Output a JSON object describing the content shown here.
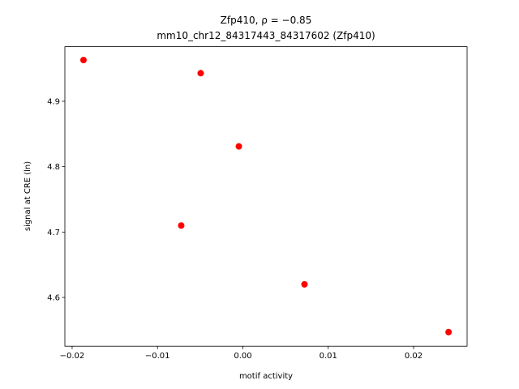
{
  "chart_data": {
    "type": "scatter",
    "title": [
      "Zfp410, ρ = −0.85",
      "mm10_chr12_84317443_84317602 (Zfp410)"
    ],
    "xlabel": "motif activity",
    "ylabel": "signal at CRE (ln)",
    "series": [
      {
        "color": "#ff0000",
        "x": [
          -0.01867,
          -0.00494,
          -0.00047,
          -0.00722,
          0.00722,
          0.0241
        ],
        "values": [
          4.963,
          4.943,
          4.831,
          4.71,
          4.62,
          4.547
        ]
      }
    ],
    "xlim": [
      -0.02085,
      0.02627
    ],
    "ylim": [
      4.5254,
      4.9835
    ],
    "xticks": [
      {
        "value": -0.02,
        "label": "−0.02"
      },
      {
        "value": -0.01,
        "label": "−0.01"
      },
      {
        "value": 0,
        "label": "0.00"
      },
      0.01,
      0.02
    ],
    "yticks": [
      4.6,
      4.7,
      4.8,
      4.9
    ]
  }
}
